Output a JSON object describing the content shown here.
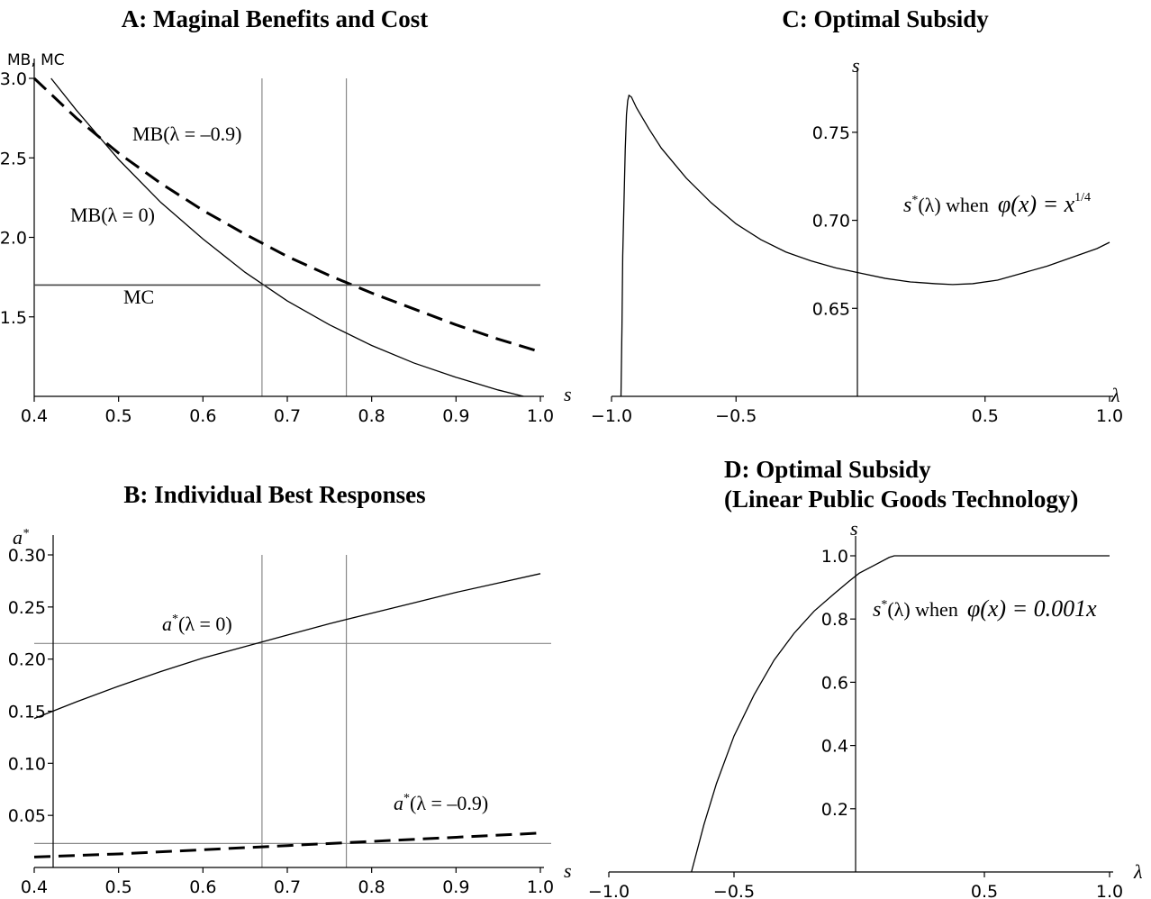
{
  "chart_data": [
    {
      "id": "A",
      "type": "line",
      "title": "A: Maginal Benefits and Cost",
      "ylabel": "MB,  MC",
      "xlim": [
        0.4,
        1.0
      ],
      "ylim": [
        1.0,
        3.0
      ],
      "xticks": [
        0.4,
        0.5,
        0.6,
        0.7,
        0.8,
        0.9,
        1.0
      ],
      "xtick_labels": [
        "0.4",
        "0.5",
        "0.6",
        "0.7",
        "0.8",
        "0.9",
        "1.0"
      ],
      "yticks": [
        1.5,
        2.0,
        2.5,
        3.0
      ],
      "ytick_labels": [
        "1.5",
        "2.0",
        "2.5",
        "3.0"
      ],
      "vlines": [
        0.67,
        0.77
      ],
      "series": [
        {
          "name": "MB(λ = –0.9)",
          "style": "dashed",
          "x": [
            0.4,
            0.45,
            0.5,
            0.55,
            0.6,
            0.65,
            0.7,
            0.75,
            0.8,
            0.85,
            0.9,
            0.95,
            1.0
          ],
          "y": [
            3.0,
            2.75,
            2.53,
            2.34,
            2.17,
            2.02,
            1.88,
            1.76,
            1.65,
            1.55,
            1.45,
            1.36,
            1.28
          ]
        },
        {
          "name": "MB(λ = 0)",
          "style": "solid",
          "x": [
            0.42,
            0.45,
            0.5,
            0.55,
            0.6,
            0.65,
            0.7,
            0.75,
            0.8,
            0.85,
            0.9,
            0.95,
            0.98
          ],
          "y": [
            3.0,
            2.8,
            2.49,
            2.22,
            1.99,
            1.78,
            1.6,
            1.45,
            1.32,
            1.21,
            1.12,
            1.04,
            1.0
          ]
        },
        {
          "name": "MC",
          "style": "solid",
          "x": [
            0.4,
            1.0
          ],
          "y": [
            1.7,
            1.7
          ]
        }
      ]
    },
    {
      "id": "B",
      "type": "line",
      "title": "B: Individual Best Responses",
      "ylabel": "a*",
      "xlim": [
        0.4,
        1.0
      ],
      "ylim": [
        0.0,
        0.3
      ],
      "xticks": [
        0.4,
        0.5,
        0.6,
        0.7,
        0.8,
        0.9,
        1.0
      ],
      "xtick_labels": [
        "0.4",
        "0.5",
        "0.6",
        "0.7",
        "0.8",
        "0.9",
        "1.0"
      ],
      "yticks": [
        0.05,
        0.1,
        0.15,
        0.2,
        0.25,
        0.3
      ],
      "ytick_labels": [
        "0.05",
        "0.10",
        "0.15",
        "0.20",
        "0.25",
        "0.30"
      ],
      "vlines": [
        0.67,
        0.77
      ],
      "hlines": [
        0.215,
        0.023
      ],
      "series": [
        {
          "name": "a*(λ = 0)",
          "style": "solid",
          "x": [
            0.4,
            0.45,
            0.5,
            0.55,
            0.6,
            0.65,
            0.7,
            0.75,
            0.8,
            0.85,
            0.9,
            0.95,
            1.0
          ],
          "y": [
            0.143,
            0.159,
            0.174,
            0.188,
            0.201,
            0.212,
            0.223,
            0.234,
            0.244,
            0.254,
            0.264,
            0.273,
            0.282
          ]
        },
        {
          "name": "a*(λ = –0.9)",
          "style": "dashed",
          "x": [
            0.4,
            0.5,
            0.6,
            0.7,
            0.8,
            0.9,
            1.0
          ],
          "y": [
            0.01,
            0.013,
            0.017,
            0.021,
            0.025,
            0.029,
            0.033
          ]
        }
      ]
    },
    {
      "id": "C",
      "type": "line",
      "title": "C: Optimal Subsidy",
      "xlabel": "λ",
      "ylabel": "s",
      "xlim": [
        -1.0,
        1.0
      ],
      "ylim": [
        0.6,
        0.775
      ],
      "xticks": [
        -1.0,
        -0.5,
        0.5,
        1.0
      ],
      "xtick_labels": [
        "−1.0",
        "−0.5",
        "0.5",
        "1.0"
      ],
      "yticks": [
        0.65,
        0.7,
        0.75
      ],
      "ytick_labels": [
        "0.65",
        "0.70",
        "0.75"
      ],
      "annotation": "s*(λ)  when  φ(x) = x^1/4",
      "series": [
        {
          "name": "s*(λ)",
          "style": "solid",
          "x": [
            -0.962,
            -0.958,
            -0.955,
            -0.95,
            -0.945,
            -0.94,
            -0.935,
            -0.93,
            -0.92,
            -0.9,
            -0.85,
            -0.8,
            -0.7,
            -0.6,
            -0.5,
            -0.4,
            -0.3,
            -0.2,
            -0.1,
            0.0,
            0.1,
            0.2,
            0.3,
            0.37,
            0.45,
            0.55,
            0.65,
            0.75,
            0.85,
            0.95,
            1.0
          ],
          "y": [
            0.6,
            0.64,
            0.68,
            0.71,
            0.74,
            0.76,
            0.768,
            0.771,
            0.77,
            0.764,
            0.752,
            0.741,
            0.724,
            0.71,
            0.698,
            0.689,
            0.682,
            0.677,
            0.673,
            0.67,
            0.667,
            0.665,
            0.664,
            0.6635,
            0.664,
            0.666,
            0.67,
            0.674,
            0.679,
            0.684,
            0.6875
          ]
        }
      ]
    },
    {
      "id": "D",
      "type": "line",
      "title": "D: Optimal Subsidy",
      "subtitle": "(Linear Public Goods Technology)",
      "xlabel": "λ",
      "ylabel": "s",
      "xlim": [
        -1.0,
        1.0
      ],
      "ylim": [
        0.0,
        1.0
      ],
      "xticks": [
        -1.0,
        -0.5,
        0.5,
        1.0
      ],
      "xtick_labels": [
        "−1.0",
        "−0.5",
        "0.5",
        "1.0"
      ],
      "yticks": [
        0.2,
        0.4,
        0.6,
        0.8,
        1.0
      ],
      "ytick_labels": [
        "0.2",
        "0.4",
        "0.6",
        "0.8",
        "1.0"
      ],
      "annotation": "s*(λ)  when  φ(x) = 0.001x",
      "series": [
        {
          "name": "s*(λ)",
          "style": "solid",
          "x": [
            -0.67,
            -0.62,
            -0.57,
            -0.5,
            -0.42,
            -0.34,
            -0.26,
            -0.18,
            -0.1,
            -0.04,
            0.0,
            0.06,
            0.12,
            0.14,
            1.0
          ],
          "y": [
            0.0,
            0.15,
            0.28,
            0.43,
            0.56,
            0.67,
            0.755,
            0.825,
            0.88,
            0.92,
            0.945,
            0.97,
            0.995,
            1.0,
            1.0
          ]
        }
      ]
    }
  ],
  "labels": {
    "a_mb09": "MB(λ = –0.9)",
    "a_mb0": "MB(λ = 0)",
    "a_mc": "MC",
    "b_a0_base": "a",
    "b_a0_sup": "*",
    "b_a0_rest": "(λ = 0)",
    "b_a09_base": "a",
    "b_a09_sup": "*",
    "b_a09_rest": "(λ = –0.9)",
    "b_ylabel_base": "a",
    "b_ylabel_sup": "*",
    "c_xleft": "s",
    "d_xleft": "s",
    "c_ann_s": "s",
    "c_ann_sup": "*",
    "c_ann_mid": "(λ)  when",
    "c_ann_phi": "φ(x) = x",
    "c_ann_exp": "1/4",
    "d_ann_s": "s",
    "d_ann_sup": "*",
    "d_ann_mid": "(λ)  when",
    "d_ann_phi": "φ(x) = 0.001x"
  }
}
